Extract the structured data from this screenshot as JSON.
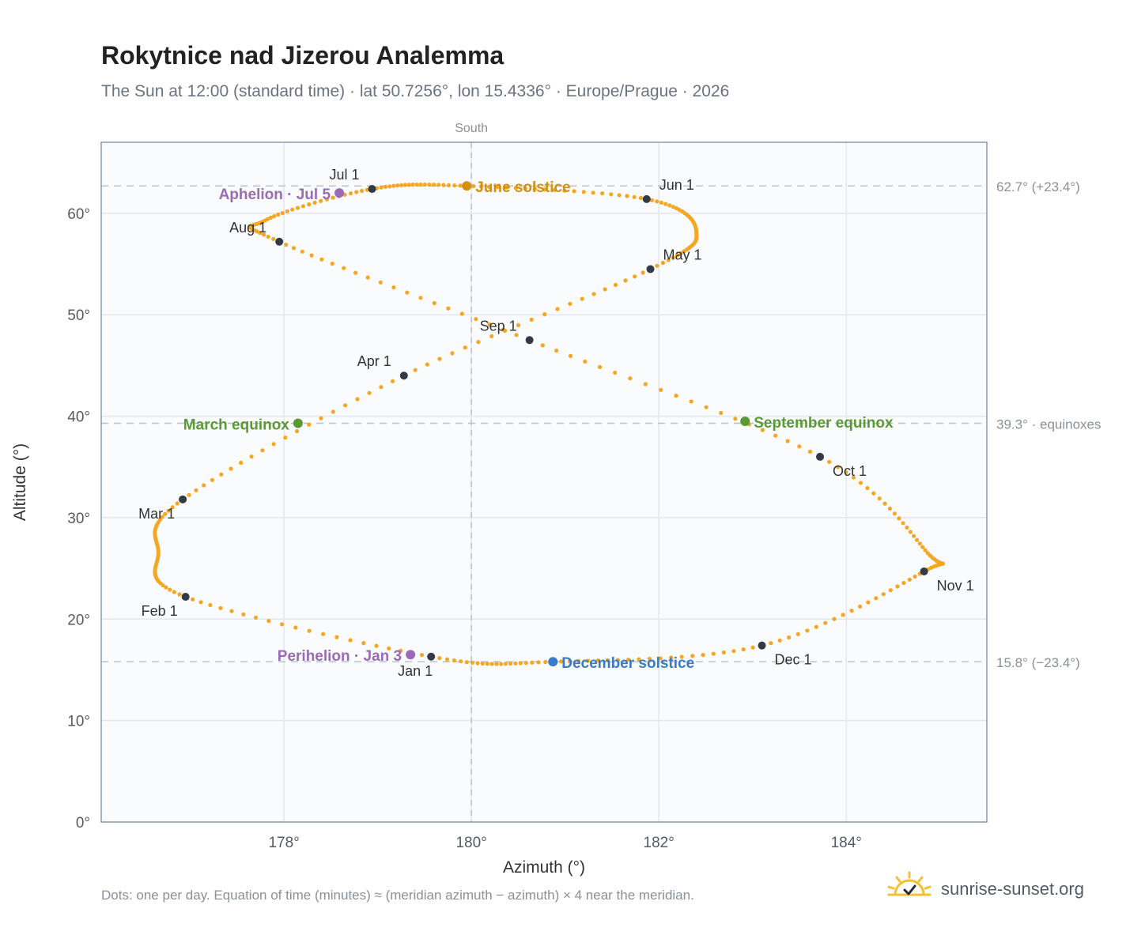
{
  "header": {
    "title": "Rokytnice nad Jizerou Analemma",
    "subtitle": "The Sun at 12:00 (standard time) · lat 50.7256°, lon 15.4336° · Europe/Prague · 2026"
  },
  "footer": {
    "note": "Dots: one per day. Equation of time (minutes) ≈ (meridian azimuth − azimuth) × 4 near the meridian.",
    "brand": "sunrise-sunset.org"
  },
  "colors": {
    "path": "#f5a623",
    "month_marker": "#333a44",
    "solstice_june": "#d4900e",
    "equinox": "#5a9a34",
    "solstice_december": "#3a7bc8",
    "aphelion_perihelion": "#9b6bb5",
    "reference_line": "#b8c2cc",
    "plot_bg": "#f9fbfd"
  },
  "chart_data": {
    "type": "scatter",
    "xlabel": "Azimuth (°)",
    "ylabel": "Altitude (°)",
    "xlim": [
      176.05,
      185.5
    ],
    "ylim": [
      0,
      67
    ],
    "xticks": [
      178,
      180,
      182,
      184
    ],
    "xtick_labels": [
      "178°",
      "180°",
      "182°",
      "184°"
    ],
    "yticks": [
      0,
      10,
      20,
      30,
      40,
      50,
      60
    ],
    "ytick_labels": [
      "0°",
      "10°",
      "20°",
      "30°",
      "40°",
      "50°",
      "60°"
    ],
    "grid": true,
    "meridian": {
      "x": 180,
      "label": "South"
    },
    "reference_lines": [
      {
        "y": 62.7,
        "label": "62.7° (+23.4°)"
      },
      {
        "y": 39.3,
        "label": "39.3° · equinoxes"
      },
      {
        "y": 15.8,
        "label": "15.8° (−23.4°)"
      }
    ],
    "path_anchors": [
      {
        "date": "Jan 1",
        "x": 179.57,
        "y": 16.3
      },
      {
        "date": "Feb 1",
        "x": 176.95,
        "y": 22.2
      },
      {
        "date": "Feb 13",
        "x": 176.66,
        "y": 26.6
      },
      {
        "date": "Mar 1",
        "x": 176.92,
        "y": 31.8
      },
      {
        "date": "Apr 1",
        "x": 179.28,
        "y": 44.0
      },
      {
        "date": "May 1",
        "x": 181.91,
        "y": 54.5
      },
      {
        "date": "May 14",
        "x": 182.4,
        "y": 58.2
      },
      {
        "date": "Jun 1",
        "x": 181.87,
        "y": 61.4
      },
      {
        "date": "Jun 21",
        "x": 179.95,
        "y": 62.7
      },
      {
        "date": "Jul 1",
        "x": 178.94,
        "y": 62.4
      },
      {
        "date": "Jul 26",
        "x": 177.8,
        "y": 59.3
      },
      {
        "date": "Aug 1",
        "x": 177.95,
        "y": 57.2
      },
      {
        "date": "Sep 1",
        "x": 180.62,
        "y": 47.5
      },
      {
        "date": "Oct 1",
        "x": 183.72,
        "y": 36.0
      },
      {
        "date": "Nov 3",
        "x": 184.87,
        "y": 26.5
      },
      {
        "date": "Nov 1",
        "x": 184.83,
        "y": 24.7
      },
      {
        "date": "Dec 1",
        "x": 183.1,
        "y": 17.4
      },
      {
        "date": "Dec 21",
        "x": 180.87,
        "y": 15.8
      }
    ],
    "month_markers": [
      {
        "label": "Jan 1",
        "x": 179.57,
        "y": 16.3,
        "pos": "below"
      },
      {
        "label": "Feb 1",
        "x": 176.95,
        "y": 22.2,
        "pos": "below-left"
      },
      {
        "label": "Mar 1",
        "x": 176.92,
        "y": 31.8,
        "pos": "below-left"
      },
      {
        "label": "Apr 1",
        "x": 179.28,
        "y": 44.0,
        "pos": "above-left"
      },
      {
        "label": "May 1",
        "x": 181.91,
        "y": 54.5,
        "pos": "above-right"
      },
      {
        "label": "Jun 1",
        "x": 181.87,
        "y": 61.4,
        "pos": "above-right"
      },
      {
        "label": "Jul 1",
        "x": 178.94,
        "y": 62.4,
        "pos": "above-left"
      },
      {
        "label": "Aug 1",
        "x": 177.95,
        "y": 57.2,
        "pos": "above-left"
      },
      {
        "label": "Sep 1",
        "x": 180.62,
        "y": 47.5,
        "pos": "above-left"
      },
      {
        "label": "Oct 1",
        "x": 183.72,
        "y": 36.0,
        "pos": "below-right"
      },
      {
        "label": "Nov 1",
        "x": 184.83,
        "y": 24.7,
        "pos": "below-right"
      },
      {
        "label": "Dec 1",
        "x": 183.1,
        "y": 17.4,
        "pos": "below-right"
      }
    ],
    "events": [
      {
        "label": "June solstice",
        "x": 179.95,
        "y": 62.7,
        "color_key": "solstice_june",
        "pos": "right"
      },
      {
        "label": "Aphelion · Jul 5",
        "x": 178.59,
        "y": 62.0,
        "color_key": "aphelion_perihelion",
        "pos": "left"
      },
      {
        "label": "March equinox",
        "x": 178.15,
        "y": 39.3,
        "color_key": "equinox",
        "pos": "left"
      },
      {
        "label": "September equinox",
        "x": 182.92,
        "y": 39.5,
        "color_key": "equinox",
        "pos": "right"
      },
      {
        "label": "Perihelion · Jan 3",
        "x": 179.35,
        "y": 16.5,
        "color_key": "aphelion_perihelion",
        "pos": "left"
      },
      {
        "label": "December solstice",
        "x": 180.87,
        "y": 15.8,
        "color_key": "solstice_december",
        "pos": "right"
      }
    ]
  }
}
